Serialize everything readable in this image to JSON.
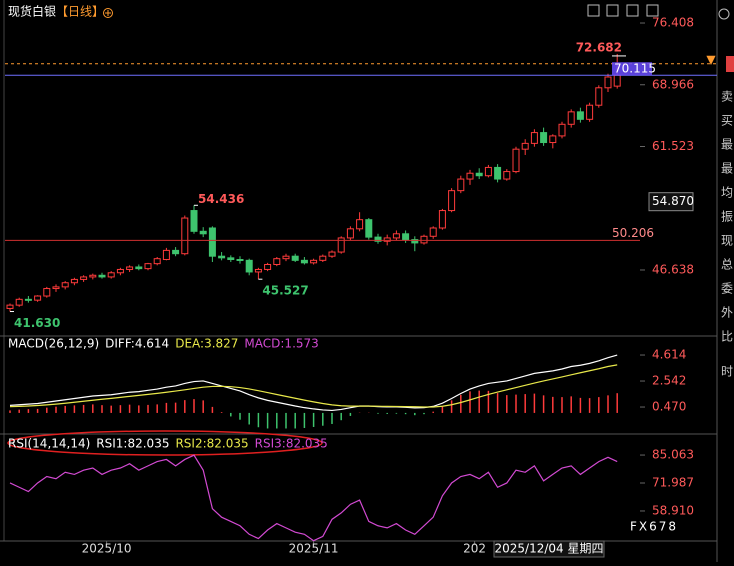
{
  "title": "现货白银",
  "period": "【日线】",
  "sidebar": [
    "卖",
    "买",
    "最",
    "最",
    "均",
    "振",
    "现",
    "总",
    "委",
    "外",
    "比"
  ],
  "sidebar_time": "时",
  "watermark": "FX678",
  "cursor_label": "2025/12/04 星期四",
  "chart_data": [
    {
      "type": "candlestick",
      "up_color": "#ff3b3b",
      "down_color": "#3ec46e",
      "ylim": [
        38.8,
        78.58
      ],
      "yticks": [
        76.408,
        68.966,
        61.523,
        46.638
      ],
      "open": [
        42.0,
        42.4,
        43.1,
        43.0,
        43.5,
        44.4,
        44.6,
        45.1,
        45.5,
        45.8,
        46.0,
        45.8,
        46.3,
        46.7,
        47.0,
        46.8,
        47.4,
        47.9,
        49.0,
        48.6,
        53.8,
        51.3,
        51.7,
        48.3,
        48.1,
        47.9,
        47.8,
        46.4,
        46.7,
        47.3,
        48.0,
        48.3,
        47.8,
        47.5,
        47.8,
        48.3,
        48.8,
        50.5,
        51.6,
        52.7,
        50.6,
        50.1,
        50.5,
        51.0,
        50.3,
        49.9,
        50.7,
        51.7,
        53.8,
        56.2,
        57.6,
        58.3,
        58.0,
        59.0,
        57.6,
        58.5,
        61.2,
        61.9,
        63.2,
        62.0,
        62.8,
        64.2,
        65.7,
        64.8,
        66.5,
        68.6,
        68.8
      ],
      "high": [
        42.6,
        43.3,
        43.5,
        43.6,
        44.6,
        44.9,
        45.3,
        45.7,
        46.0,
        46.2,
        46.3,
        46.5,
        46.9,
        47.2,
        47.3,
        47.5,
        48.2,
        49.3,
        49.4,
        53.2,
        54.436,
        51.8,
        51.9,
        48.8,
        48.4,
        48.3,
        48.0,
        46.9,
        47.5,
        48.2,
        48.6,
        48.6,
        48.2,
        48.0,
        48.5,
        49.0,
        50.7,
        51.9,
        53.6,
        52.9,
        51.0,
        50.9,
        51.4,
        51.4,
        50.7,
        50.9,
        51.9,
        54.0,
        56.5,
        58.0,
        58.7,
        58.9,
        59.3,
        59.4,
        58.8,
        61.5,
        62.4,
        63.6,
        63.8,
        63.0,
        64.5,
        66.0,
        66.2,
        66.8,
        68.9,
        70.3,
        72.682
      ],
      "low": [
        41.63,
        42.2,
        42.7,
        42.8,
        43.3,
        44.0,
        44.3,
        44.8,
        45.2,
        45.5,
        45.6,
        45.6,
        46.0,
        46.4,
        46.6,
        46.6,
        47.2,
        47.8,
        48.3,
        48.4,
        51.0,
        50.6,
        47.6,
        47.8,
        47.6,
        47.4,
        46.0,
        45.527,
        46.5,
        47.1,
        47.7,
        47.6,
        47.3,
        47.3,
        47.6,
        48.1,
        48.6,
        50.2,
        51.3,
        50.3,
        49.8,
        49.6,
        50.2,
        49.9,
        48.9,
        49.7,
        50.4,
        51.5,
        53.6,
        55.9,
        56.9,
        57.6,
        57.8,
        57.2,
        57.4,
        58.3,
        60.5,
        61.5,
        61.6,
        61.3,
        62.5,
        63.8,
        64.4,
        64.5,
        66.2,
        68.1,
        68.5
      ],
      "close": [
        42.4,
        43.1,
        43.0,
        43.5,
        44.4,
        44.6,
        45.1,
        45.5,
        45.8,
        46.0,
        45.8,
        46.3,
        46.7,
        47.0,
        46.8,
        47.4,
        48.0,
        49.0,
        48.6,
        52.9,
        51.3,
        51.0,
        48.3,
        48.1,
        47.9,
        47.8,
        46.4,
        46.7,
        47.3,
        48.0,
        48.3,
        47.8,
        47.5,
        47.8,
        48.3,
        48.8,
        50.5,
        51.6,
        52.7,
        50.6,
        50.1,
        50.5,
        51.0,
        50.3,
        49.9,
        50.7,
        51.7,
        53.8,
        56.2,
        57.6,
        58.3,
        58.0,
        59.0,
        57.6,
        58.5,
        61.2,
        61.9,
        63.2,
        62.0,
        62.8,
        64.2,
        65.7,
        64.8,
        66.5,
        68.6,
        69.9,
        70.115
      ],
      "extreme_labels": [
        54.436,
        45.527,
        {
          "value": 41.63,
          "label": "41.630"
        }
      ],
      "high_marker": 72.682,
      "last_price": 70.115,
      "support_line": 50.206,
      "dashed_line": 71.5,
      "cursor_price": {
        "value": 54.87,
        "label": "54.870"
      }
    },
    {
      "type": "macd",
      "ylim": [
        -1.52,
        6.05
      ],
      "yticks": [
        4.614,
        2.542,
        {
          "value": 0.47,
          "label": "0.470"
        }
      ],
      "up_color": "#ff3b3b",
      "down_color": "#3ec46e",
      "legend": [
        {
          "text": "MACD(26,12,9)",
          "color": "#ffffff"
        },
        {
          "text": "DIFF:4.614",
          "color": "#ffffff"
        },
        {
          "text": "DEA:3.827",
          "color": "#e8e84a"
        },
        {
          "text": "MACD:1.573",
          "color": "#d24ad2"
        }
      ],
      "series": [
        {
          "name": "DIFF",
          "color": "#ffffff",
          "values": [
            0.6,
            0.65,
            0.7,
            0.75,
            0.85,
            0.95,
            1.05,
            1.15,
            1.25,
            1.35,
            1.4,
            1.45,
            1.55,
            1.65,
            1.7,
            1.8,
            1.9,
            2.05,
            2.15,
            2.35,
            2.5,
            2.55,
            2.35,
            2.15,
            1.95,
            1.75,
            1.45,
            1.2,
            1.0,
            0.85,
            0.7,
            0.55,
            0.42,
            0.32,
            0.24,
            0.2,
            0.28,
            0.42,
            0.55,
            0.55,
            0.5,
            0.48,
            0.48,
            0.45,
            0.4,
            0.42,
            0.52,
            0.78,
            1.15,
            1.55,
            1.9,
            2.15,
            2.35,
            2.45,
            2.55,
            2.75,
            2.95,
            3.15,
            3.25,
            3.35,
            3.5,
            3.7,
            3.8,
            3.95,
            4.15,
            4.4,
            4.614
          ]
        },
        {
          "name": "DEA",
          "color": "#e8e84a",
          "values": [
            0.5,
            0.52,
            0.55,
            0.59,
            0.64,
            0.7,
            0.77,
            0.85,
            0.93,
            1.01,
            1.09,
            1.16,
            1.24,
            1.32,
            1.4,
            1.48,
            1.56,
            1.65,
            1.74,
            1.84,
            1.95,
            2.05,
            2.11,
            2.12,
            2.09,
            2.02,
            1.91,
            1.77,
            1.62,
            1.47,
            1.32,
            1.17,
            1.02,
            0.88,
            0.75,
            0.64,
            0.57,
            0.54,
            0.54,
            0.54,
            0.53,
            0.52,
            0.51,
            0.5,
            0.49,
            0.47,
            0.47,
            0.53,
            0.65,
            0.83,
            1.04,
            1.26,
            1.47,
            1.66,
            1.84,
            2.02,
            2.2,
            2.38,
            2.55,
            2.71,
            2.87,
            3.04,
            3.2,
            3.36,
            3.52,
            3.7,
            3.827
          ]
        },
        {
          "name": "MACD",
          "bars": true,
          "values": [
            0.2,
            0.26,
            0.3,
            0.32,
            0.42,
            0.5,
            0.56,
            0.6,
            0.64,
            0.68,
            0.62,
            0.58,
            0.62,
            0.66,
            0.6,
            0.64,
            0.68,
            0.8,
            0.82,
            1.02,
            1.1,
            1.0,
            0.48,
            0.06,
            -0.28,
            -0.54,
            -0.92,
            -1.14,
            -1.24,
            -1.24,
            -1.24,
            -1.24,
            -1.2,
            -1.12,
            -1.02,
            -0.88,
            -0.58,
            -0.24,
            0.02,
            0.02,
            -0.06,
            -0.08,
            -0.06,
            -0.1,
            -0.18,
            -0.1,
            0.1,
            0.5,
            1.0,
            1.44,
            1.72,
            1.78,
            1.76,
            1.58,
            1.42,
            1.46,
            1.5,
            1.54,
            1.4,
            1.28,
            1.26,
            1.32,
            1.2,
            1.18,
            1.26,
            1.4,
            1.573
          ]
        }
      ]
    },
    {
      "type": "line",
      "ylim": [
        43,
        93.5
      ],
      "yticks": [
        85.063,
        71.987,
        {
          "value": 58.91,
          "label": "58.910"
        }
      ],
      "legend": [
        {
          "text": "RSI(14,14,14)",
          "color": "#ffffff"
        },
        {
          "text": "RSI1:82.035",
          "color": "#ffffff"
        },
        {
          "text": "RSI2:82.035",
          "color": "#e8e84a"
        },
        {
          "text": "RSI3:82.035",
          "color": "#d24ad2"
        }
      ],
      "series": [
        {
          "name": "RSI1",
          "color": "#d24ad2",
          "values": [
            72,
            70,
            68,
            72,
            75,
            74,
            77,
            76,
            78,
            79,
            76,
            78,
            79,
            81,
            78,
            80,
            82,
            83,
            80,
            83,
            85,
            78,
            60,
            56,
            54,
            52,
            48,
            46,
            50,
            53,
            51,
            49,
            48,
            45,
            47,
            55,
            58,
            62,
            64,
            54,
            52,
            51,
            53,
            50,
            48,
            52,
            56,
            66,
            72,
            75,
            76,
            74,
            77,
            70,
            72,
            78,
            77,
            80,
            73,
            76,
            79,
            80,
            76,
            79,
            82,
            84,
            82.035
          ]
        }
      ],
      "x_labels": [
        {
          "value": 10.5,
          "label": "2025/10"
        },
        {
          "value": 33,
          "label": "2025/11"
        },
        {
          "value": 50.5,
          "label": "202"
        }
      ]
    }
  ]
}
